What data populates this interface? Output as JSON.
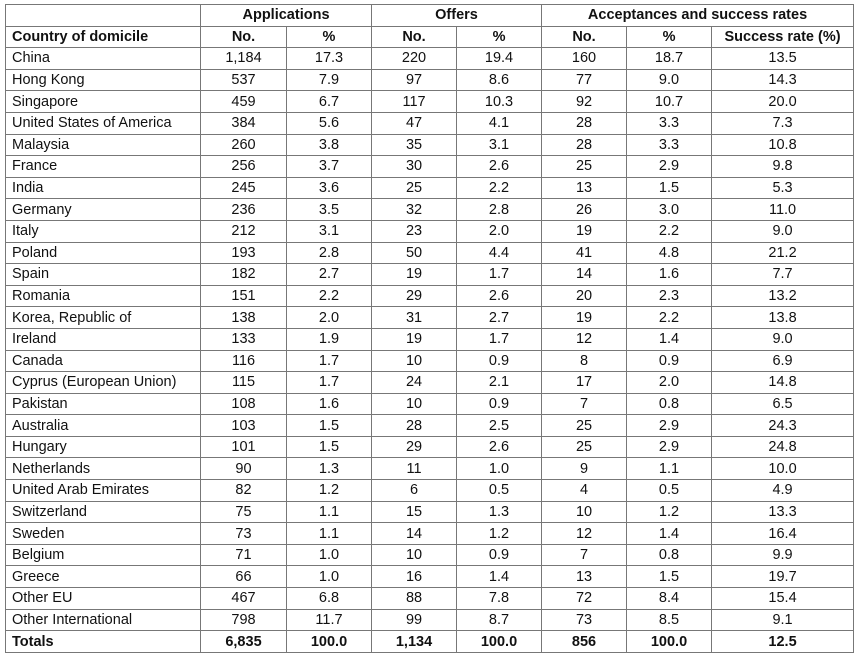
{
  "table": {
    "group_headers": [
      "Applications",
      "Offers",
      "Acceptances and success rates"
    ],
    "column_headers": [
      "Country of domicile",
      "No.",
      "%",
      "No.",
      "%",
      "No.",
      "%",
      "Success rate (%)"
    ],
    "rows": [
      [
        "China",
        "1,184",
        "17.3",
        "220",
        "19.4",
        "160",
        "18.7",
        "13.5"
      ],
      [
        "Hong Kong",
        "537",
        "7.9",
        "97",
        "8.6",
        "77",
        "9.0",
        "14.3"
      ],
      [
        "Singapore",
        "459",
        "6.7",
        "117",
        "10.3",
        "92",
        "10.7",
        "20.0"
      ],
      [
        "United States of America",
        "384",
        "5.6",
        "47",
        "4.1",
        "28",
        "3.3",
        "7.3"
      ],
      [
        "Malaysia",
        "260",
        "3.8",
        "35",
        "3.1",
        "28",
        "3.3",
        "10.8"
      ],
      [
        "France",
        "256",
        "3.7",
        "30",
        "2.6",
        "25",
        "2.9",
        "9.8"
      ],
      [
        "India",
        "245",
        "3.6",
        "25",
        "2.2",
        "13",
        "1.5",
        "5.3"
      ],
      [
        "Germany",
        "236",
        "3.5",
        "32",
        "2.8",
        "26",
        "3.0",
        "11.0"
      ],
      [
        "Italy",
        "212",
        "3.1",
        "23",
        "2.0",
        "19",
        "2.2",
        "9.0"
      ],
      [
        "Poland",
        "193",
        "2.8",
        "50",
        "4.4",
        "41",
        "4.8",
        "21.2"
      ],
      [
        "Spain",
        "182",
        "2.7",
        "19",
        "1.7",
        "14",
        "1.6",
        "7.7"
      ],
      [
        "Romania",
        "151",
        "2.2",
        "29",
        "2.6",
        "20",
        "2.3",
        "13.2"
      ],
      [
        "Korea, Republic of",
        "138",
        "2.0",
        "31",
        "2.7",
        "19",
        "2.2",
        "13.8"
      ],
      [
        "Ireland",
        "133",
        "1.9",
        "19",
        "1.7",
        "12",
        "1.4",
        "9.0"
      ],
      [
        "Canada",
        "116",
        "1.7",
        "10",
        "0.9",
        "8",
        "0.9",
        "6.9"
      ],
      [
        "Cyprus (European Union)",
        "115",
        "1.7",
        "24",
        "2.1",
        "17",
        "2.0",
        "14.8"
      ],
      [
        "Pakistan",
        "108",
        "1.6",
        "10",
        "0.9",
        "7",
        "0.8",
        "6.5"
      ],
      [
        "Australia",
        "103",
        "1.5",
        "28",
        "2.5",
        "25",
        "2.9",
        "24.3"
      ],
      [
        "Hungary",
        "101",
        "1.5",
        "29",
        "2.6",
        "25",
        "2.9",
        "24.8"
      ],
      [
        "Netherlands",
        "90",
        "1.3",
        "11",
        "1.0",
        "9",
        "1.1",
        "10.0"
      ],
      [
        "United Arab Emirates",
        "82",
        "1.2",
        "6",
        "0.5",
        "4",
        "0.5",
        "4.9"
      ],
      [
        "Switzerland",
        "75",
        "1.1",
        "15",
        "1.3",
        "10",
        "1.2",
        "13.3"
      ],
      [
        "Sweden",
        "73",
        "1.1",
        "14",
        "1.2",
        "12",
        "1.4",
        "16.4"
      ],
      [
        "Belgium",
        "71",
        "1.0",
        "10",
        "0.9",
        "7",
        "0.8",
        "9.9"
      ],
      [
        "Greece",
        "66",
        "1.0",
        "16",
        "1.4",
        "13",
        "1.5",
        "19.7"
      ],
      [
        "Other EU",
        "467",
        "6.8",
        "88",
        "7.8",
        "72",
        "8.4",
        "15.4"
      ],
      [
        "Other International",
        "798",
        "11.7",
        "99",
        "8.7",
        "73",
        "8.5",
        "9.1"
      ]
    ],
    "totals": [
      "Totals",
      "6,835",
      "100.0",
      "1,134",
      "100.0",
      "856",
      "100.0",
      "12.5"
    ]
  }
}
